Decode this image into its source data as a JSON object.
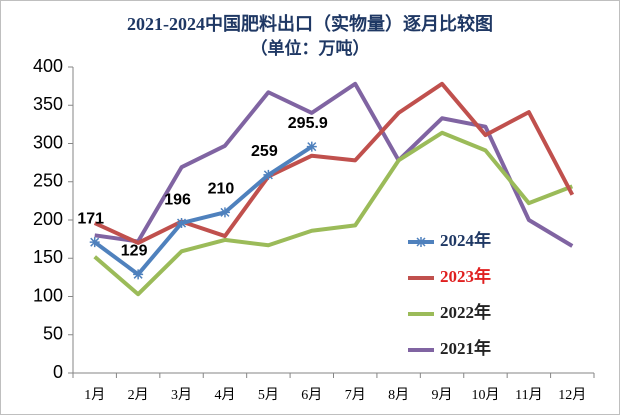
{
  "chart_data": {
    "type": "line",
    "title": "2021-2024中国肥料出口（实物量）逐月比较图",
    "subtitle": "（单位：万吨）",
    "categories": [
      "1月",
      "2月",
      "3月",
      "4月",
      "5月",
      "6月",
      "7月",
      "8月",
      "9月",
      "10月",
      "11月",
      "12月"
    ],
    "series": [
      {
        "name": "2024年",
        "color": "#4f81bd",
        "legend_text_color": "#1f3864",
        "marker": "star",
        "data_labels": true,
        "values": [
          171,
          129,
          196,
          210,
          259,
          295.9,
          null,
          null,
          null,
          null,
          null,
          null
        ]
      },
      {
        "name": "2023年",
        "color": "#c0504d",
        "legend_text_color": "#e02020",
        "values": [
          196,
          170,
          198,
          179,
          257,
          284,
          278,
          340,
          378,
          311,
          341,
          233
        ]
      },
      {
        "name": "2022年",
        "color": "#9bbb59",
        "legend_text_color": "#222222",
        "values": [
          152,
          103,
          159,
          174,
          167,
          186,
          193,
          278,
          314,
          291,
          222,
          244
        ]
      },
      {
        "name": "2021年",
        "color": "#8064a2",
        "legend_text_color": "#222222",
        "values": [
          180,
          172,
          269,
          297,
          367,
          340,
          378,
          278,
          333,
          322,
          200,
          166
        ]
      }
    ],
    "ylim": [
      0,
      400
    ],
    "yticks": [
      0,
      50,
      100,
      150,
      200,
      250,
      300,
      350,
      400
    ],
    "grid": false,
    "legend": "right"
  }
}
